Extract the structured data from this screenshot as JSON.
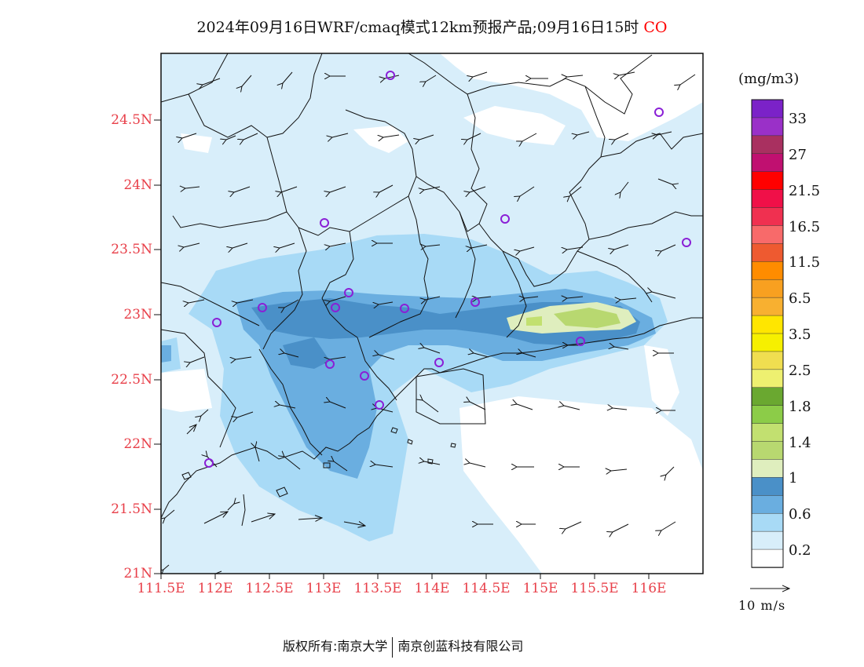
{
  "title": {
    "text": "2024年09月16日WRF/cmaq模式12km预报产品;09月16日15时",
    "species": "CO"
  },
  "units": "(mg/m3)",
  "vector_label": "10 m/s",
  "footer": {
    "left": "版权所有:南京大学",
    "right": "南京创蓝科技有限公司"
  },
  "colors": {
    "tick_label": "#e8404a",
    "station_marker": "#8a1fd6",
    "land_outline": "#111111"
  },
  "axes": {
    "y_ticks": [
      "24.5N",
      "24N",
      "23.5N",
      "23N",
      "22.5N",
      "22N",
      "21.5N",
      "21N"
    ],
    "x_ticks": [
      "111.5E",
      "112E",
      "112.5E",
      "113E",
      "113.5E",
      "114E",
      "114.5E",
      "115E",
      "115.5E",
      "116E"
    ]
  },
  "colorbar": {
    "labels": [
      "33",
      "27",
      "21.5",
      "16.5",
      "11.5",
      "6.5",
      "3.5",
      "2.5",
      "1.8",
      "1.4",
      "1",
      "0.6",
      "0.2"
    ],
    "colors": [
      "#7b22c8",
      "#9a30c8",
      "#a93060",
      "#c01070",
      "#ff0000",
      "#f01048",
      "#f03050",
      "#f86a6a",
      "#ee5a30",
      "#ff8c00",
      "#f8a020",
      "#f8b030",
      "#ffe600",
      "#f6f000",
      "#f0de50",
      "#eef070",
      "#6aa830",
      "#8ccc48",
      "#c2e070",
      "#b8d870",
      "#dfeebe",
      "#4a90c8",
      "#6aaee0",
      "#a8daf6",
      "#d8eefa",
      "#ffffff"
    ]
  }
}
